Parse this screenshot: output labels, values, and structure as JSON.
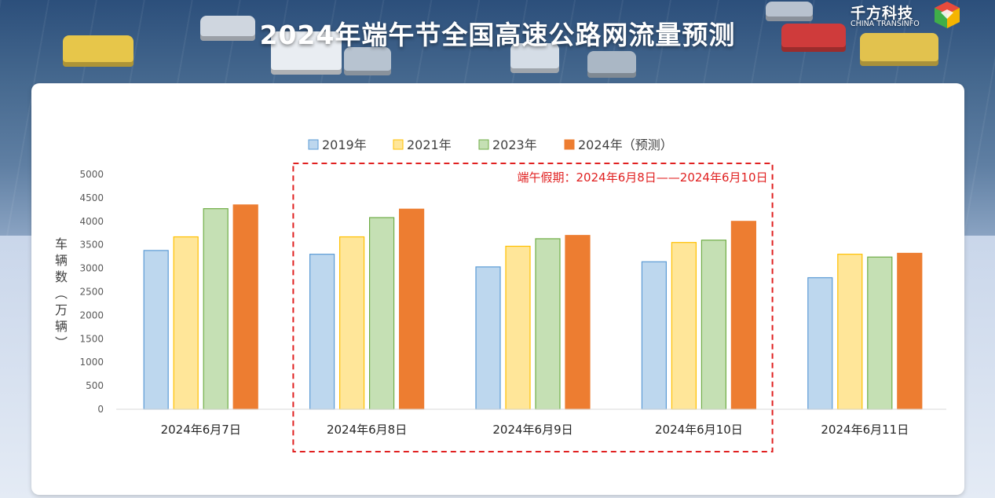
{
  "page": {
    "title": "2024年端午节全国高速公路网流量预测",
    "logo": {
      "name_cn": "千方科技",
      "name_en": "CHINA TRANSINFO"
    }
  },
  "colors": {
    "series_fill": [
      "#bdd7ee",
      "#ffe699",
      "#c5e0b4",
      "#ed7d31"
    ],
    "series_stroke": [
      "#5b9bd5",
      "#ffc000",
      "#70ad47",
      "#ed7d31"
    ],
    "highlight": "#e02020",
    "axis_text": "#595959"
  },
  "chart_data": {
    "type": "bar",
    "title": "",
    "xlabel": "",
    "ylabel": "车辆数（万辆）",
    "ylim": [
      0,
      5000
    ],
    "yticks": [
      0,
      500,
      1000,
      1500,
      2000,
      2500,
      3000,
      3500,
      4000,
      4500,
      5000
    ],
    "grid": false,
    "legend_position": "top",
    "categories": [
      "2024年6月7日",
      "2024年6月8日",
      "2024年6月9日",
      "2024年6月10日",
      "2024年6月11日"
    ],
    "series": [
      {
        "name": "2019年",
        "values": [
          3380,
          3300,
          3030,
          3140,
          2800
        ]
      },
      {
        "name": "2021年",
        "values": [
          3670,
          3670,
          3470,
          3550,
          3300
        ]
      },
      {
        "name": "2023年",
        "values": [
          4270,
          4080,
          3630,
          3600,
          3240
        ]
      },
      {
        "name": "2024年（预测）",
        "values": [
          4350,
          4260,
          3700,
          4000,
          3320
        ]
      }
    ],
    "annotation": {
      "text": "端午假期：2024年6月8日——2024年6月10日",
      "spans_categories": [
        "2024年6月8日",
        "2024年6月10日"
      ]
    }
  }
}
